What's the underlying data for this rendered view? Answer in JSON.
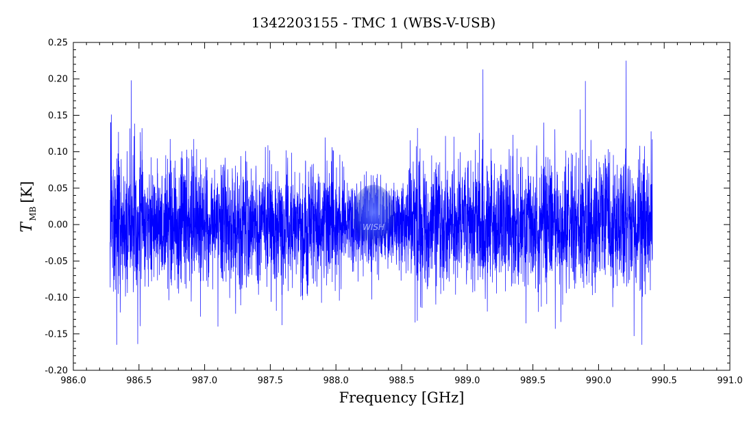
{
  "chart_data": {
    "type": "line",
    "title": "1342203155 - TMC 1 (WBS-V-USB)",
    "xlabel": "Frequency [GHz]",
    "ylabel_main": "T",
    "ylabel_sub": "MB",
    "ylabel_unit": "[K]",
    "xlim": [
      986.0,
      991.0
    ],
    "ylim": [
      -0.2,
      0.25
    ],
    "xticks": [
      "986.0",
      "986.5",
      "987.0",
      "987.5",
      "988.0",
      "988.5",
      "989.0",
      "989.5",
      "990.0",
      "990.5",
      "991.0"
    ],
    "yticks": [
      "-0.20",
      "-0.15",
      "-0.10",
      "-0.05",
      "0.00",
      "0.05",
      "0.10",
      "0.15",
      "0.20",
      "0.25"
    ],
    "line_color": "#0000ff",
    "grid": false,
    "watermark_text": "WISH",
    "series": [
      {
        "x_range": [
          986.28,
          990.41
        ],
        "noise_rms": 0.045,
        "notable_points": [
          {
            "x": 986.29,
            "y": 0.151
          },
          {
            "x": 986.44,
            "y": 0.198
          },
          {
            "x": 986.33,
            "y": -0.165
          },
          {
            "x": 986.49,
            "y": -0.164
          },
          {
            "x": 987.59,
            "y": -0.138
          },
          {
            "x": 988.23,
            "y": 0.073
          },
          {
            "x": 988.62,
            "y": -0.132
          },
          {
            "x": 989.12,
            "y": 0.213
          },
          {
            "x": 989.67,
            "y": -0.143
          },
          {
            "x": 989.86,
            "y": 0.158
          },
          {
            "x": 989.9,
            "y": 0.197
          },
          {
            "x": 990.21,
            "y": 0.225
          },
          {
            "x": 990.27,
            "y": -0.153
          },
          {
            "x": 990.33,
            "y": -0.165
          },
          {
            "x": 990.4,
            "y": 0.128
          }
        ]
      }
    ]
  }
}
